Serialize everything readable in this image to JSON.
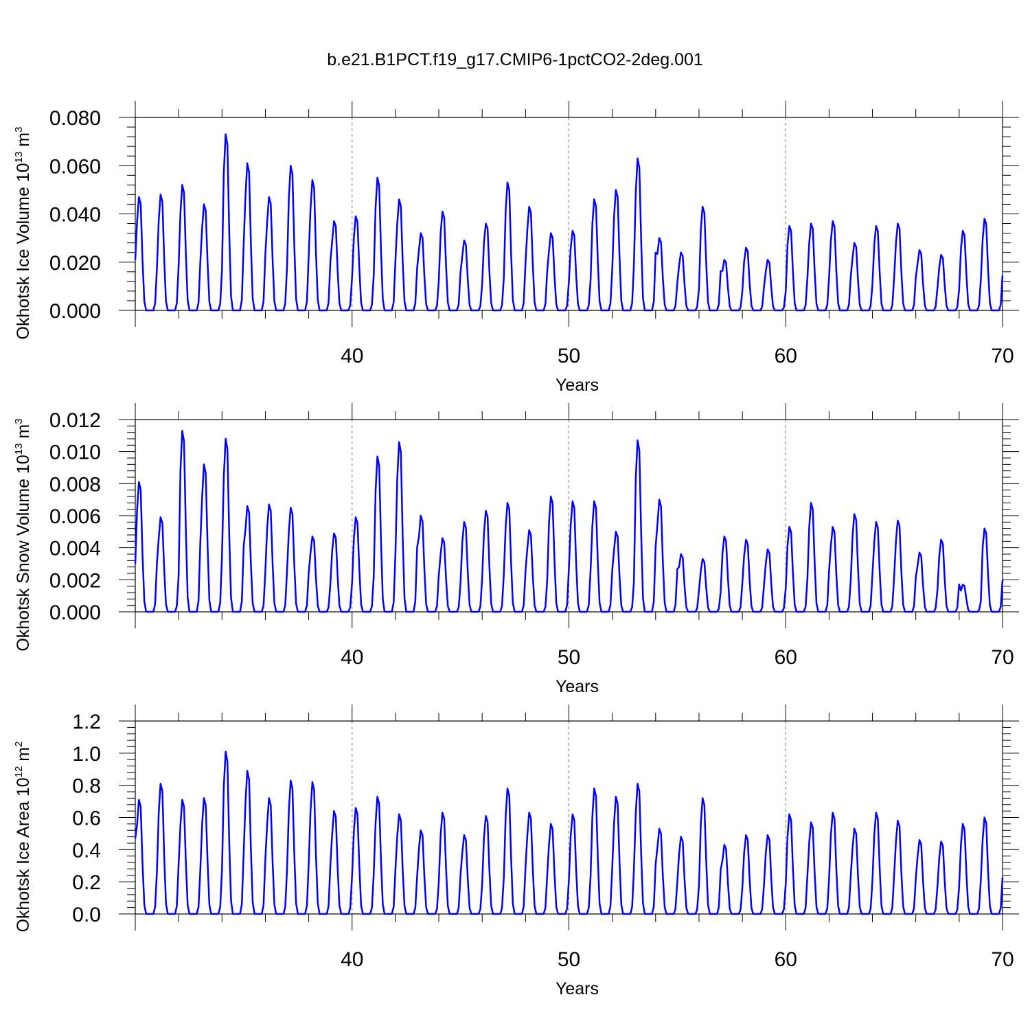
{
  "figure_title": "b.e21.B1PCT.f19_g17.CMIP6-1pctCO2-2deg.001",
  "line_color": "#0000ff",
  "chart_data": [
    {
      "type": "line",
      "name": "ice-volume",
      "ylabel_main": "Okhotsk Ice Volume 10",
      "ylabel_exp": "13",
      "ylabel_unit": " m",
      "ylabel_unit_exp": "3",
      "xlabel": "Years",
      "xlim": [
        30,
        70
      ],
      "ylim": [
        0,
        0.08
      ],
      "xticks": [
        40,
        50,
        60,
        70
      ],
      "xtick_labels": [
        "40",
        "50",
        "60",
        "70"
      ],
      "yticks": [
        0,
        0.02,
        0.04,
        0.06,
        0.08
      ],
      "ytick_labels": [
        "0.000",
        "0.020",
        "0.040",
        "0.060",
        "0.080"
      ],
      "x_grid": [
        40,
        50,
        60
      ],
      "series_name": "ice volume",
      "start_year": 30,
      "initial_value": 0.021,
      "annual_peaks": [
        0.047,
        0.048,
        0.052,
        0.044,
        0.073,
        0.061,
        0.047,
        0.06,
        0.054,
        0.037,
        0.039,
        0.055,
        0.046,
        0.032,
        0.041,
        0.029,
        0.036,
        0.053,
        0.043,
        0.032,
        0.033,
        0.046,
        0.05,
        0.063,
        0.03,
        0.024,
        0.043,
        0.021,
        0.026,
        0.021,
        0.035,
        0.036,
        0.037,
        0.028,
        0.035,
        0.036,
        0.025,
        0.023,
        0.033,
        0.038
      ]
    },
    {
      "type": "line",
      "name": "snow-volume",
      "ylabel_main": "Okhotsk Snow Volume 10",
      "ylabel_exp": "13",
      "ylabel_unit": " m",
      "ylabel_unit_exp": "3",
      "xlabel": "Years",
      "xlim": [
        30,
        70
      ],
      "ylim": [
        0,
        0.012
      ],
      "xticks": [
        40,
        50,
        60,
        70
      ],
      "xtick_labels": [
        "40",
        "50",
        "60",
        "70"
      ],
      "yticks": [
        0,
        0.002,
        0.004,
        0.006,
        0.008,
        0.01,
        0.012
      ],
      "ytick_labels": [
        "0.000",
        "0.002",
        "0.004",
        "0.006",
        "0.008",
        "0.010",
        "0.012"
      ],
      "x_grid": [
        40,
        50,
        60
      ],
      "series_name": "snow volume",
      "start_year": 30,
      "initial_value": 0.003,
      "annual_peaks": [
        0.0081,
        0.0059,
        0.0113,
        0.0092,
        0.0108,
        0.0066,
        0.0067,
        0.0065,
        0.0047,
        0.0049,
        0.0059,
        0.0097,
        0.0106,
        0.006,
        0.0046,
        0.0056,
        0.0063,
        0.0068,
        0.0051,
        0.0072,
        0.0069,
        0.0069,
        0.005,
        0.0107,
        0.007,
        0.0036,
        0.0033,
        0.0047,
        0.0045,
        0.0039,
        0.0053,
        0.0068,
        0.0053,
        0.0061,
        0.0056,
        0.0057,
        0.0037,
        0.0045,
        0.0017,
        0.0052
      ]
    },
    {
      "type": "line",
      "name": "ice-area",
      "ylabel_main": "Okhotsk Ice Area 10",
      "ylabel_exp": "12",
      "ylabel_unit": " m",
      "ylabel_unit_exp": "2",
      "xlabel": "Years",
      "xlim": [
        30,
        70
      ],
      "ylim": [
        0,
        1.2
      ],
      "xticks": [
        40,
        50,
        60,
        70
      ],
      "xtick_labels": [
        "40",
        "50",
        "60",
        "70"
      ],
      "yticks": [
        0,
        0.2,
        0.4,
        0.6,
        0.8,
        1.0,
        1.2
      ],
      "ytick_labels": [
        "0.0",
        "0.2",
        "0.4",
        "0.6",
        "0.8",
        "1.0",
        "1.2"
      ],
      "x_grid": [
        40,
        50,
        60
      ],
      "series_name": "ice area",
      "start_year": 30,
      "initial_value": 0.47,
      "annual_peaks": [
        0.71,
        0.81,
        0.71,
        0.72,
        1.01,
        0.89,
        0.72,
        0.83,
        0.82,
        0.64,
        0.66,
        0.73,
        0.62,
        0.52,
        0.63,
        0.49,
        0.61,
        0.78,
        0.63,
        0.56,
        0.62,
        0.78,
        0.73,
        0.81,
        0.53,
        0.48,
        0.72,
        0.43,
        0.49,
        0.49,
        0.62,
        0.57,
        0.63,
        0.53,
        0.63,
        0.58,
        0.46,
        0.45,
        0.56,
        0.6
      ]
    }
  ]
}
